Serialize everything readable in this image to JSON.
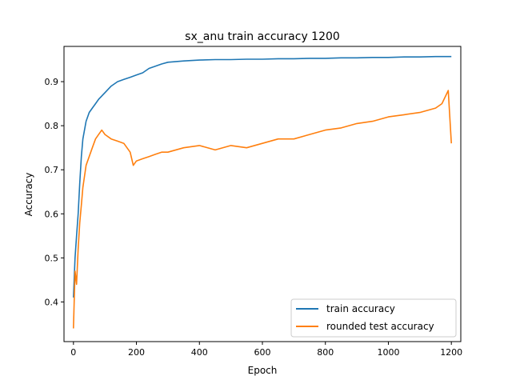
{
  "chart_data": {
    "type": "line",
    "title": "sx_anu train accuracy 1200",
    "xlabel": "Epoch",
    "ylabel": "Accuracy",
    "xlim": [
      -30,
      1230
    ],
    "ylim": [
      0.31,
      0.98
    ],
    "xticks": [
      0,
      200,
      400,
      600,
      800,
      1000,
      1200
    ],
    "yticks": [
      0.4,
      0.5,
      0.6,
      0.7,
      0.8,
      0.9
    ],
    "grid": false,
    "legend_position": "lower-right",
    "series": [
      {
        "name": "train accuracy",
        "color": "#1f77b4",
        "x": [
          0,
          5,
          10,
          15,
          20,
          25,
          30,
          40,
          50,
          60,
          70,
          80,
          100,
          120,
          140,
          160,
          180,
          200,
          220,
          240,
          260,
          280,
          300,
          350,
          400,
          450,
          500,
          550,
          600,
          650,
          700,
          750,
          800,
          850,
          900,
          950,
          1000,
          1050,
          1100,
          1150,
          1200
        ],
        "y": [
          0.41,
          0.5,
          0.55,
          0.6,
          0.67,
          0.73,
          0.77,
          0.81,
          0.83,
          0.84,
          0.85,
          0.86,
          0.875,
          0.89,
          0.9,
          0.905,
          0.91,
          0.915,
          0.92,
          0.93,
          0.935,
          0.94,
          0.944,
          0.947,
          0.949,
          0.95,
          0.95,
          0.951,
          0.951,
          0.952,
          0.952,
          0.953,
          0.953,
          0.954,
          0.954,
          0.955,
          0.955,
          0.956,
          0.956,
          0.957,
          0.957
        ]
      },
      {
        "name": "rounded test accuracy",
        "color": "#ff7f0e",
        "x": [
          0,
          5,
          10,
          15,
          20,
          25,
          30,
          40,
          50,
          60,
          70,
          80,
          90,
          100,
          120,
          140,
          160,
          180,
          190,
          200,
          220,
          240,
          260,
          280,
          300,
          350,
          400,
          450,
          500,
          550,
          600,
          650,
          700,
          750,
          800,
          850,
          900,
          950,
          1000,
          1050,
          1100,
          1150,
          1170,
          1190,
          1200
        ],
        "y": [
          0.34,
          0.47,
          0.44,
          0.52,
          0.58,
          0.62,
          0.66,
          0.71,
          0.73,
          0.75,
          0.77,
          0.78,
          0.79,
          0.78,
          0.77,
          0.765,
          0.76,
          0.74,
          0.71,
          0.72,
          0.725,
          0.73,
          0.735,
          0.74,
          0.74,
          0.75,
          0.755,
          0.745,
          0.755,
          0.75,
          0.76,
          0.77,
          0.77,
          0.78,
          0.79,
          0.795,
          0.805,
          0.81,
          0.82,
          0.825,
          0.83,
          0.84,
          0.85,
          0.88,
          0.76
        ]
      }
    ]
  }
}
